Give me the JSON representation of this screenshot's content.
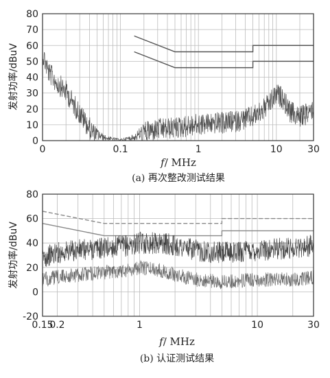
{
  "chart_data": [
    {
      "type": "line",
      "caption": "(a) 再次整改测试结果",
      "xlabel_italic": "f",
      "xlabel_unit": "/ MHz",
      "ylabel": "发射功率/dBuV",
      "xscale": "log",
      "xlim": [
        0.01,
        30
      ],
      "ylim": [
        0,
        80
      ],
      "x_ticks": [
        {
          "v": 0.01,
          "label": "0"
        },
        {
          "v": 0.1,
          "label": "0.1"
        },
        {
          "v": 1,
          "label": "1"
        },
        {
          "v": 10,
          "label": "10"
        },
        {
          "v": 30,
          "label": "30"
        }
      ],
      "y_ticks": [
        0,
        10,
        20,
        30,
        40,
        50,
        60,
        70,
        80
      ],
      "grid": true,
      "series": [
        {
          "role": "limit-quasi-peak",
          "x": [
            0.15,
            0.5,
            5,
            5,
            30
          ],
          "y": [
            66,
            56,
            56,
            60,
            60
          ],
          "color": "#555555"
        },
        {
          "role": "limit-average",
          "x": [
            0.15,
            0.5,
            5,
            5,
            30
          ],
          "y": [
            56,
            46,
            46,
            50,
            50
          ],
          "color": "#555555"
        },
        {
          "role": "measured-envelope",
          "x": [
            0.01,
            0.012,
            0.015,
            0.02,
            0.025,
            0.03,
            0.04,
            0.05,
            0.06,
            0.08,
            0.1,
            0.15,
            0.2,
            0.3,
            0.5,
            0.7,
            1,
            1.5,
            2,
            3,
            5,
            7,
            9,
            10,
            12,
            15,
            20,
            25,
            30
          ],
          "y": [
            62,
            50,
            44,
            38,
            30,
            24,
            15,
            8,
            4,
            2,
            1,
            4,
            12,
            14,
            15,
            16,
            17,
            18,
            18,
            19,
            22,
            27,
            33,
            36,
            34,
            25,
            22,
            24,
            28
          ],
          "color": "#333333"
        }
      ]
    },
    {
      "type": "line",
      "caption": "(b) 认证测试结果",
      "xlabel_italic": "f",
      "xlabel_unit": "/ MHz",
      "ylabel": "发射功率/dBuV",
      "xscale": "log",
      "xlim": [
        0.15,
        30
      ],
      "ylim": [
        -20,
        80
      ],
      "x_ticks": [
        {
          "v": 0.15,
          "label": "0.15"
        },
        {
          "v": 0.2,
          "label": "0.2"
        },
        {
          "v": 1,
          "label": "1"
        },
        {
          "v": 10,
          "label": "10"
        },
        {
          "v": 30,
          "label": "30"
        }
      ],
      "y_ticks": [
        -20,
        0,
        20,
        40,
        60,
        80
      ],
      "grid": true,
      "series": [
        {
          "role": "limit-quasi-peak",
          "x": [
            0.15,
            0.5,
            5,
            5,
            30
          ],
          "y": [
            66,
            56,
            56,
            60,
            60
          ],
          "color": "#888888",
          "dash": true
        },
        {
          "role": "limit-average",
          "x": [
            0.15,
            0.5,
            5,
            5,
            30
          ],
          "y": [
            56,
            46,
            46,
            50,
            50
          ],
          "color": "#888888",
          "dash": false
        },
        {
          "role": "peak",
          "x": [
            0.15,
            0.2,
            0.3,
            0.5,
            0.8,
            1,
            1.5,
            2,
            3,
            5,
            10,
            20,
            30
          ],
          "y": [
            28,
            32,
            34,
            36,
            38,
            40,
            40,
            38,
            34,
            32,
            34,
            36,
            38
          ],
          "color": "#222222"
        },
        {
          "role": "average",
          "x": [
            0.15,
            0.2,
            0.3,
            0.5,
            0.8,
            1,
            1.5,
            2,
            3,
            5,
            10,
            20,
            30
          ],
          "y": [
            10,
            12,
            14,
            16,
            18,
            20,
            18,
            14,
            10,
            8,
            10,
            10,
            12
          ],
          "color": "#555555"
        }
      ]
    }
  ]
}
